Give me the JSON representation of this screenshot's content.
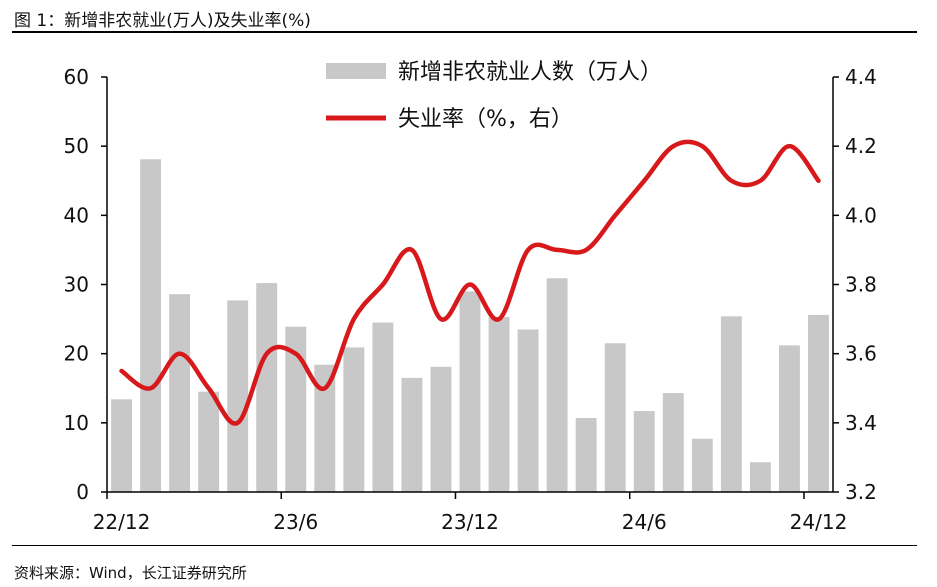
{
  "figure": {
    "title": "图 1：新增非农就业(万人)及失业率(%)",
    "source": "资料来源：Wind，长江证券研究所"
  },
  "colors": {
    "bars": "#c8c8c8",
    "line": "#d7191c",
    "axis": "#000000"
  },
  "chart_data": {
    "type": "bar+line",
    "x_ticks": [
      "22/12",
      "23/6",
      "23/12",
      "24/6",
      "24/12"
    ],
    "x_tick_indices": [
      0,
      6,
      12,
      18,
      24
    ],
    "left_axis": {
      "ylim": [
        0,
        60
      ],
      "ticks": [
        "0",
        "10",
        "20",
        "30",
        "40",
        "50",
        "60"
      ]
    },
    "right_axis": {
      "ylim": [
        3.2,
        4.4
      ],
      "ticks": [
        "3.2",
        "3.4",
        "3.6",
        "3.8",
        "4.0",
        "4.2",
        "4.4"
      ]
    },
    "series": [
      {
        "name": "新增非农就业人数（万人）",
        "type": "bar",
        "axis": "left",
        "values": [
          13.4,
          48.1,
          28.6,
          14.5,
          27.7,
          30.2,
          23.9,
          18.4,
          20.9,
          24.5,
          16.5,
          18.1,
          29.0,
          25.3,
          23.5,
          30.9,
          10.7,
          21.5,
          11.7,
          14.3,
          7.7,
          25.4,
          4.3,
          21.2,
          25.6
        ]
      },
      {
        "name": "失业率（%，右）",
        "type": "line",
        "axis": "right",
        "values": [
          3.55,
          3.5,
          3.6,
          3.5,
          3.4,
          3.6,
          3.6,
          3.5,
          3.7,
          3.8,
          3.9,
          3.7,
          3.8,
          3.7,
          3.9,
          3.9,
          3.9,
          4.0,
          4.1,
          4.2,
          4.2,
          4.1,
          4.1,
          4.2,
          4.1
        ]
      }
    ],
    "legend_position": "top-center",
    "grid": false
  }
}
